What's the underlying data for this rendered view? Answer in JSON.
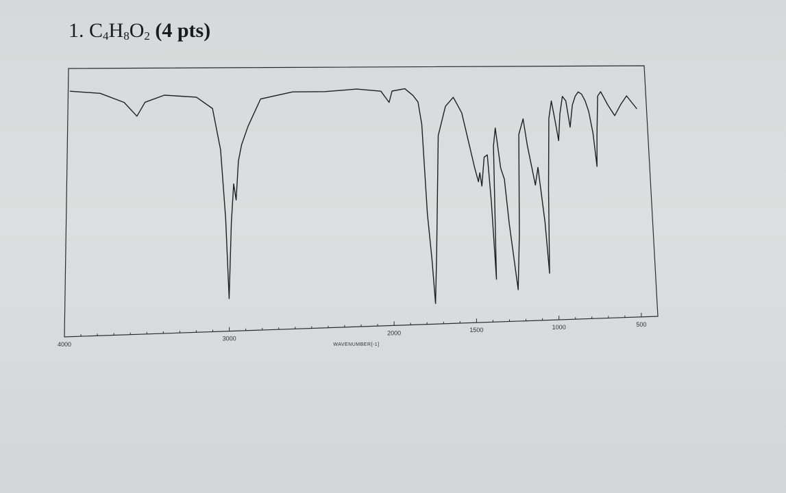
{
  "question": {
    "number": "1.",
    "formula_parts": [
      {
        "text": "C",
        "sub": "4"
      },
      {
        "text": "H",
        "sub": "8"
      },
      {
        "text": "O",
        "sub": "2"
      }
    ],
    "points": "(4 pts)"
  },
  "chart_data": {
    "type": "line",
    "title": "",
    "xlabel": "WAVENUMBER[-1]",
    "ylabel": "",
    "xlim": [
      4000,
      400
    ],
    "ylim": [
      0,
      100
    ],
    "x_reversed": true,
    "grid": false,
    "x_tick_labels": [
      "4000",
      "3000",
      "2000",
      "1500",
      "1000",
      "500"
    ],
    "x_ticks": [
      4000,
      3000,
      2000,
      1500,
      1000,
      500
    ],
    "series": [
      {
        "values_unit": "transmittance (approx.)",
        "points": [
          [
            3990,
            96
          ],
          [
            3800,
            95
          ],
          [
            3650,
            91
          ],
          [
            3570,
            85
          ],
          [
            3520,
            91
          ],
          [
            3400,
            94
          ],
          [
            3200,
            93
          ],
          [
            3100,
            88
          ],
          [
            3050,
            70
          ],
          [
            3020,
            40
          ],
          [
            3000,
            5
          ],
          [
            2985,
            38
          ],
          [
            2970,
            55
          ],
          [
            2955,
            48
          ],
          [
            2940,
            65
          ],
          [
            2920,
            72
          ],
          [
            2880,
            80
          ],
          [
            2800,
            92
          ],
          [
            2600,
            95
          ],
          [
            2400,
            95
          ],
          [
            2200,
            96
          ],
          [
            2050,
            95
          ],
          [
            2000,
            90
          ],
          [
            1980,
            95
          ],
          [
            1900,
            96
          ],
          [
            1850,
            93
          ],
          [
            1820,
            90
          ],
          [
            1800,
            80
          ],
          [
            1780,
            40
          ],
          [
            1760,
            20
          ],
          [
            1745,
            0
          ],
          [
            1730,
            22
          ],
          [
            1700,
            75
          ],
          [
            1650,
            88
          ],
          [
            1600,
            92
          ],
          [
            1550,
            85
          ],
          [
            1480,
            60
          ],
          [
            1460,
            54
          ],
          [
            1450,
            58
          ],
          [
            1440,
            52
          ],
          [
            1420,
            65
          ],
          [
            1400,
            66
          ],
          [
            1385,
            45
          ],
          [
            1370,
            10
          ],
          [
            1360,
            70
          ],
          [
            1345,
            78
          ],
          [
            1320,
            60
          ],
          [
            1300,
            55
          ],
          [
            1280,
            35
          ],
          [
            1240,
            5
          ],
          [
            1220,
            30
          ],
          [
            1200,
            75
          ],
          [
            1170,
            82
          ],
          [
            1150,
            70
          ],
          [
            1110,
            52
          ],
          [
            1090,
            60
          ],
          [
            1060,
            35
          ],
          [
            1045,
            12
          ],
          [
            1030,
            50
          ],
          [
            1010,
            82
          ],
          [
            990,
            90
          ],
          [
            970,
            80
          ],
          [
            955,
            72
          ],
          [
            940,
            84
          ],
          [
            920,
            92
          ],
          [
            900,
            90
          ],
          [
            880,
            78
          ],
          [
            860,
            88
          ],
          [
            840,
            92
          ],
          [
            820,
            94
          ],
          [
            800,
            93
          ],
          [
            780,
            90
          ],
          [
            760,
            85
          ],
          [
            740,
            75
          ],
          [
            725,
            60
          ],
          [
            715,
            75
          ],
          [
            700,
            92
          ],
          [
            680,
            94
          ],
          [
            640,
            88
          ],
          [
            600,
            83
          ],
          [
            560,
            88
          ],
          [
            520,
            92
          ],
          [
            490,
            89
          ],
          [
            460,
            86
          ]
        ]
      }
    ]
  }
}
